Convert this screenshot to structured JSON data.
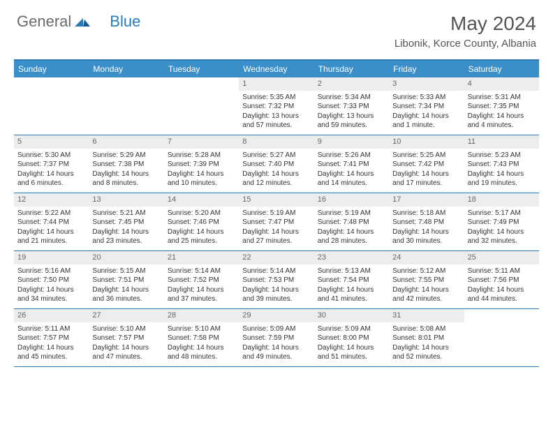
{
  "logo": {
    "text1": "General",
    "text2": "Blue"
  },
  "title": "May 2024",
  "location": "Libonik, Korce County, Albania",
  "weekdays": [
    "Sunday",
    "Monday",
    "Tuesday",
    "Wednesday",
    "Thursday",
    "Friday",
    "Saturday"
  ],
  "colors": {
    "brand": "#3b8fc9",
    "band": "#ededed",
    "border": "#2a7ab8"
  },
  "weeks": [
    [
      null,
      null,
      null,
      {
        "n": "1",
        "sr": "Sunrise: 5:35 AM",
        "ss": "Sunset: 7:32 PM",
        "dl": "Daylight: 13 hours and 57 minutes."
      },
      {
        "n": "2",
        "sr": "Sunrise: 5:34 AM",
        "ss": "Sunset: 7:33 PM",
        "dl": "Daylight: 13 hours and 59 minutes."
      },
      {
        "n": "3",
        "sr": "Sunrise: 5:33 AM",
        "ss": "Sunset: 7:34 PM",
        "dl": "Daylight: 14 hours and 1 minute."
      },
      {
        "n": "4",
        "sr": "Sunrise: 5:31 AM",
        "ss": "Sunset: 7:35 PM",
        "dl": "Daylight: 14 hours and 4 minutes."
      }
    ],
    [
      {
        "n": "5",
        "sr": "Sunrise: 5:30 AM",
        "ss": "Sunset: 7:37 PM",
        "dl": "Daylight: 14 hours and 6 minutes."
      },
      {
        "n": "6",
        "sr": "Sunrise: 5:29 AM",
        "ss": "Sunset: 7:38 PM",
        "dl": "Daylight: 14 hours and 8 minutes."
      },
      {
        "n": "7",
        "sr": "Sunrise: 5:28 AM",
        "ss": "Sunset: 7:39 PM",
        "dl": "Daylight: 14 hours and 10 minutes."
      },
      {
        "n": "8",
        "sr": "Sunrise: 5:27 AM",
        "ss": "Sunset: 7:40 PM",
        "dl": "Daylight: 14 hours and 12 minutes."
      },
      {
        "n": "9",
        "sr": "Sunrise: 5:26 AM",
        "ss": "Sunset: 7:41 PM",
        "dl": "Daylight: 14 hours and 14 minutes."
      },
      {
        "n": "10",
        "sr": "Sunrise: 5:25 AM",
        "ss": "Sunset: 7:42 PM",
        "dl": "Daylight: 14 hours and 17 minutes."
      },
      {
        "n": "11",
        "sr": "Sunrise: 5:23 AM",
        "ss": "Sunset: 7:43 PM",
        "dl": "Daylight: 14 hours and 19 minutes."
      }
    ],
    [
      {
        "n": "12",
        "sr": "Sunrise: 5:22 AM",
        "ss": "Sunset: 7:44 PM",
        "dl": "Daylight: 14 hours and 21 minutes."
      },
      {
        "n": "13",
        "sr": "Sunrise: 5:21 AM",
        "ss": "Sunset: 7:45 PM",
        "dl": "Daylight: 14 hours and 23 minutes."
      },
      {
        "n": "14",
        "sr": "Sunrise: 5:20 AM",
        "ss": "Sunset: 7:46 PM",
        "dl": "Daylight: 14 hours and 25 minutes."
      },
      {
        "n": "15",
        "sr": "Sunrise: 5:19 AM",
        "ss": "Sunset: 7:47 PM",
        "dl": "Daylight: 14 hours and 27 minutes."
      },
      {
        "n": "16",
        "sr": "Sunrise: 5:19 AM",
        "ss": "Sunset: 7:48 PM",
        "dl": "Daylight: 14 hours and 28 minutes."
      },
      {
        "n": "17",
        "sr": "Sunrise: 5:18 AM",
        "ss": "Sunset: 7:48 PM",
        "dl": "Daylight: 14 hours and 30 minutes."
      },
      {
        "n": "18",
        "sr": "Sunrise: 5:17 AM",
        "ss": "Sunset: 7:49 PM",
        "dl": "Daylight: 14 hours and 32 minutes."
      }
    ],
    [
      {
        "n": "19",
        "sr": "Sunrise: 5:16 AM",
        "ss": "Sunset: 7:50 PM",
        "dl": "Daylight: 14 hours and 34 minutes."
      },
      {
        "n": "20",
        "sr": "Sunrise: 5:15 AM",
        "ss": "Sunset: 7:51 PM",
        "dl": "Daylight: 14 hours and 36 minutes."
      },
      {
        "n": "21",
        "sr": "Sunrise: 5:14 AM",
        "ss": "Sunset: 7:52 PM",
        "dl": "Daylight: 14 hours and 37 minutes."
      },
      {
        "n": "22",
        "sr": "Sunrise: 5:14 AM",
        "ss": "Sunset: 7:53 PM",
        "dl": "Daylight: 14 hours and 39 minutes."
      },
      {
        "n": "23",
        "sr": "Sunrise: 5:13 AM",
        "ss": "Sunset: 7:54 PM",
        "dl": "Daylight: 14 hours and 41 minutes."
      },
      {
        "n": "24",
        "sr": "Sunrise: 5:12 AM",
        "ss": "Sunset: 7:55 PM",
        "dl": "Daylight: 14 hours and 42 minutes."
      },
      {
        "n": "25",
        "sr": "Sunrise: 5:11 AM",
        "ss": "Sunset: 7:56 PM",
        "dl": "Daylight: 14 hours and 44 minutes."
      }
    ],
    [
      {
        "n": "26",
        "sr": "Sunrise: 5:11 AM",
        "ss": "Sunset: 7:57 PM",
        "dl": "Daylight: 14 hours and 45 minutes."
      },
      {
        "n": "27",
        "sr": "Sunrise: 5:10 AM",
        "ss": "Sunset: 7:57 PM",
        "dl": "Daylight: 14 hours and 47 minutes."
      },
      {
        "n": "28",
        "sr": "Sunrise: 5:10 AM",
        "ss": "Sunset: 7:58 PM",
        "dl": "Daylight: 14 hours and 48 minutes."
      },
      {
        "n": "29",
        "sr": "Sunrise: 5:09 AM",
        "ss": "Sunset: 7:59 PM",
        "dl": "Daylight: 14 hours and 49 minutes."
      },
      {
        "n": "30",
        "sr": "Sunrise: 5:09 AM",
        "ss": "Sunset: 8:00 PM",
        "dl": "Daylight: 14 hours and 51 minutes."
      },
      {
        "n": "31",
        "sr": "Sunrise: 5:08 AM",
        "ss": "Sunset: 8:01 PM",
        "dl": "Daylight: 14 hours and 52 minutes."
      },
      null
    ]
  ]
}
